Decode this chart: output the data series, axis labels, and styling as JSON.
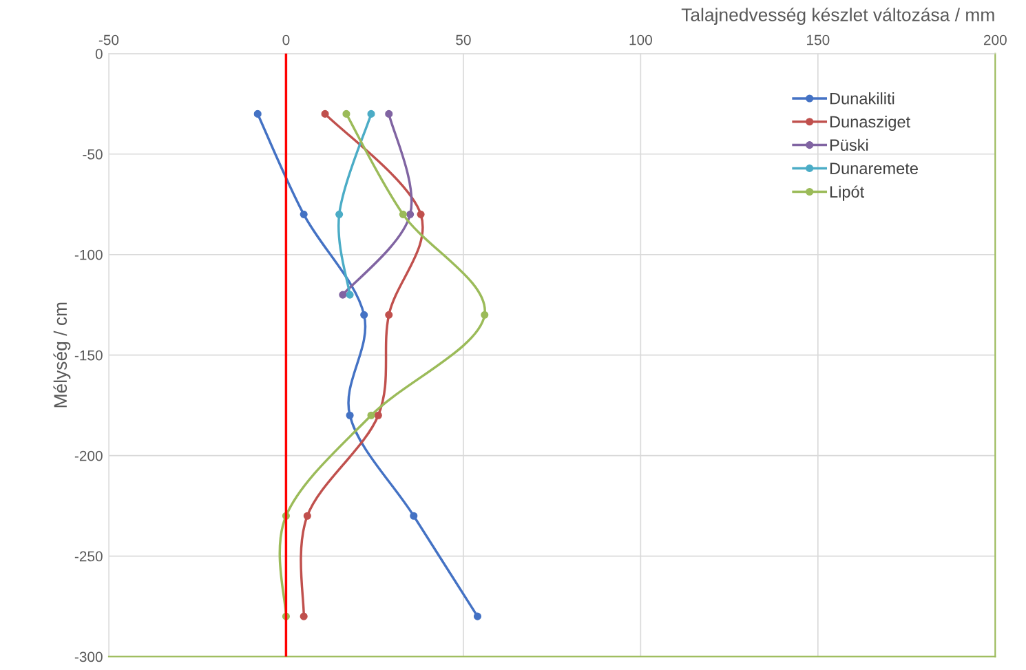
{
  "chart_data": {
    "type": "line",
    "xlabel": "Talajnedvesség készlet változása / mm",
    "ylabel": "Mélység / cm",
    "xlim": [
      -50,
      200
    ],
    "xticks": [
      -50,
      0,
      50,
      100,
      150,
      200
    ],
    "ylim": [
      -300,
      0
    ],
    "yticks": [
      -300,
      -250,
      -200,
      -150,
      -100,
      -50,
      0
    ],
    "grid": true,
    "legend": "top right",
    "marker": "circle",
    "line_style": "solid",
    "ref_lines": [
      {
        "axis": "x",
        "value": 0,
        "color": "#ff0000"
      }
    ],
    "series": [
      {
        "name": "Dunakiliti",
        "color": "#4472c4",
        "x": [
          -8,
          5,
          22,
          18,
          36,
          54
        ],
        "values": [
          -30,
          -80,
          -130,
          -180,
          -230,
          -280
        ]
      },
      {
        "name": "Dunasziget",
        "color": "#c0504d",
        "x": [
          11,
          38,
          29,
          26,
          6,
          5
        ],
        "values": [
          -30,
          -80,
          -130,
          -180,
          -230,
          -280
        ]
      },
      {
        "name": "Püski",
        "color": "#8064a2",
        "x": [
          29,
          35,
          16
        ],
        "values": [
          -30,
          -80,
          -120
        ]
      },
      {
        "name": "Dunaremete",
        "color": "#4bacc6",
        "x": [
          24,
          15,
          18
        ],
        "values": [
          -30,
          -80,
          -120
        ]
      },
      {
        "name": "Lipót",
        "color": "#9bbb59",
        "x": [
          17,
          33,
          56,
          24,
          0,
          0
        ],
        "values": [
          -30,
          -80,
          -130,
          -180,
          -230,
          -280
        ]
      }
    ]
  }
}
